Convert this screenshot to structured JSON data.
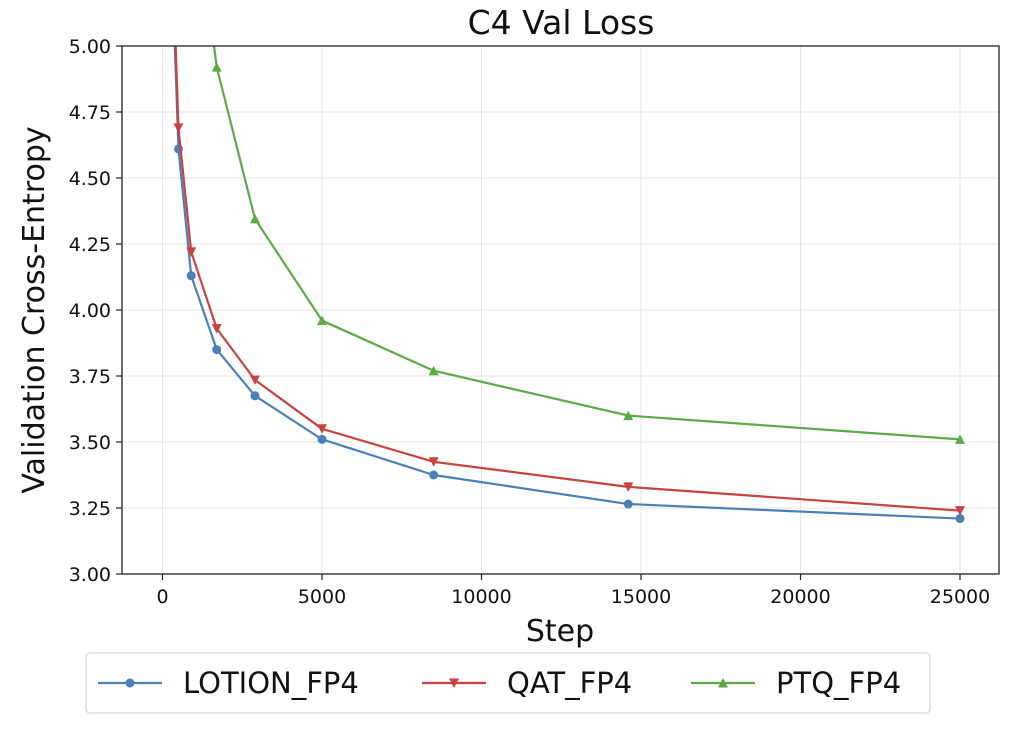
{
  "chart_data": {
    "type": "line",
    "title": "C4 Val Loss",
    "xlabel": "Step",
    "ylabel": "Validation Cross-Entropy",
    "xlim": [
      -1300,
      26200
    ],
    "ylim": [
      3.0,
      5.0
    ],
    "xticks": [
      0,
      5000,
      10000,
      15000,
      20000,
      25000
    ],
    "xtick_labels": [
      "0",
      "5000",
      "10000",
      "15000",
      "20000",
      "25000"
    ],
    "yticks": [
      3.0,
      3.25,
      3.5,
      3.75,
      4.0,
      4.25,
      4.5,
      4.75,
      5.0
    ],
    "ytick_labels": [
      "3.00",
      "3.25",
      "3.50",
      "3.75",
      "4.00",
      "4.25",
      "4.50",
      "4.75",
      "5.00"
    ],
    "grid": true,
    "legend_position": "bottom-center-outside",
    "series": [
      {
        "name": "LOTION_FP4",
        "color": "#4a7fb8",
        "marker": "circle",
        "x": [
          300,
          500,
          900,
          1700,
          2900,
          5000,
          8500,
          14600,
          25000
        ],
        "y": [
          5.3,
          4.61,
          4.13,
          3.85,
          3.675,
          3.51,
          3.375,
          3.265,
          3.21
        ]
      },
      {
        "name": "QAT_FP4",
        "color": "#c9423f",
        "marker": "triangle-down",
        "x": [
          300,
          500,
          900,
          1700,
          2900,
          5000,
          8500,
          14600,
          25000
        ],
        "y": [
          5.4,
          4.69,
          4.22,
          3.93,
          3.735,
          3.55,
          3.425,
          3.33,
          3.24
        ]
      },
      {
        "name": "PTQ_FP4",
        "color": "#5aaa46",
        "marker": "triangle-up",
        "x": [
          1400,
          1700,
          2900,
          5000,
          8500,
          14600,
          25000
        ],
        "y": [
          5.2,
          4.92,
          4.345,
          3.96,
          3.77,
          3.6,
          3.51
        ]
      }
    ]
  }
}
